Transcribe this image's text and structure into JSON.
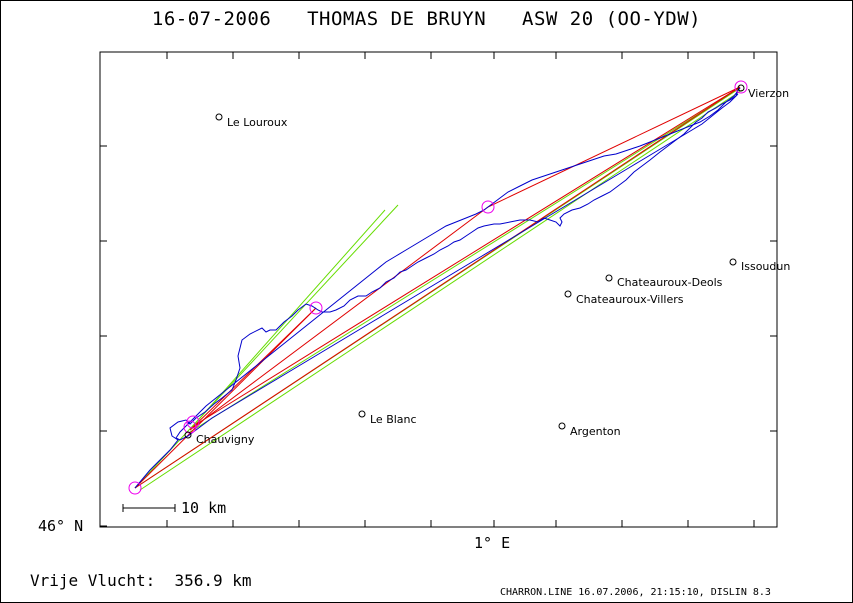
{
  "title": "16-07-2006   THOMAS DE BRUYN   ASW 20 (OO-YDW)",
  "axis": {
    "lat_label": "46° N",
    "lon_label": "1° E"
  },
  "scale_bar": "10 km",
  "places": [
    {
      "name": "Le Louroux"
    },
    {
      "name": "Vierzon"
    },
    {
      "name": "Issoudun"
    },
    {
      "name": "Chateauroux-Deols"
    },
    {
      "name": "Chateauroux-Villers"
    },
    {
      "name": "Le Blanc"
    },
    {
      "name": "Argenton"
    },
    {
      "name": "Chauvigny"
    }
  ],
  "colors": {
    "track": "#0000cc",
    "red_lines": "#e00000",
    "green_lines": "#66dd00",
    "turnpoints": "#ee00ee"
  },
  "footer": {
    "distance": "Vrije Vlucht:  356.9 km",
    "info": "CHARRON.LINE 16.07.2006, 21:15:10, DISLIN 8.3"
  }
}
